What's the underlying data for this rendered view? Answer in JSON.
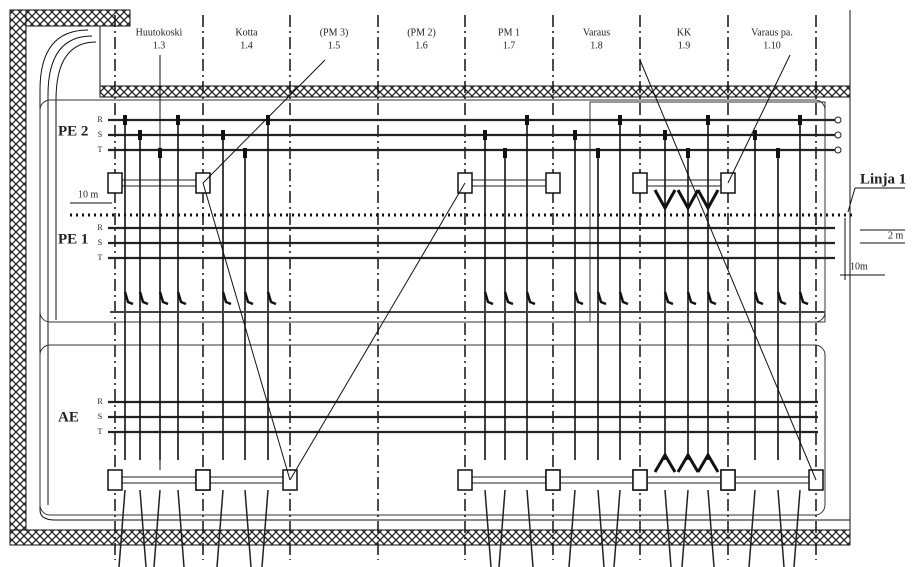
{
  "columns": [
    {
      "name": "Huutokoski",
      "number": "1.3"
    },
    {
      "name": "Kotta",
      "number": "1.4"
    },
    {
      "name": "(PM 3)",
      "number": "1.5"
    },
    {
      "name": "(PM 2)",
      "number": "1.6"
    },
    {
      "name": "PM 1",
      "number": "1.7"
    },
    {
      "name": "Varaus",
      "number": "1.8"
    },
    {
      "name": "KK",
      "number": "1.9"
    },
    {
      "name": "Varaus pa.",
      "number": "1.10"
    }
  ],
  "sections": [
    {
      "label": "PE 2",
      "phases": [
        "R",
        "S",
        "T"
      ]
    },
    {
      "label": "PE 1",
      "phases": [
        "R",
        "S",
        "T"
      ]
    },
    {
      "label": "AE",
      "phases": [
        "R",
        "S",
        "T"
      ]
    }
  ],
  "line_label": "Linja 1",
  "dimensions": {
    "left": "10 m",
    "gap": "2 m",
    "offset": "10m"
  }
}
